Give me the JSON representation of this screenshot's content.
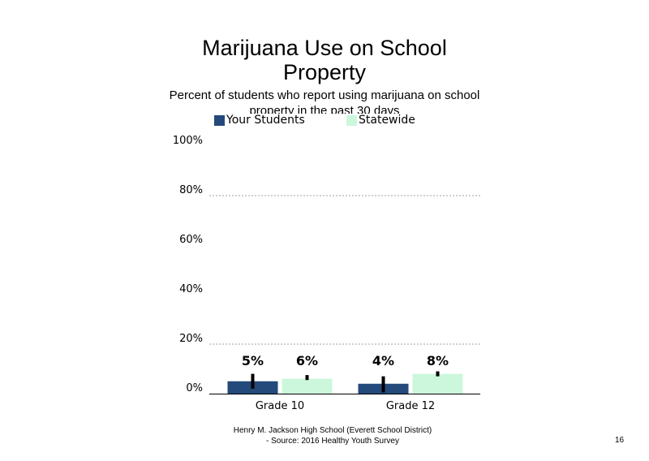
{
  "title": "Marijuana Use on School Property",
  "subtitle": "Percent of students who report using marijuana on school property in the past 30 days",
  "legend": [
    {
      "label": "Your Students",
      "color": "#234a7a"
    },
    {
      "label": "Statewide",
      "color": "#ccf7dc"
    }
  ],
  "footer": {
    "line1": "Henry M. Jackson High School (Everett School District)",
    "line2": "- Source: 2016 Healthy Youth Survey"
  },
  "page_number": "16",
  "chart_data": {
    "type": "bar",
    "categories": [
      "Grade 10",
      "Grade 12"
    ],
    "series": [
      {
        "name": "Your Students",
        "values": [
          5,
          4
        ],
        "labels": [
          "5%",
          "4%"
        ],
        "ci": [
          [
            2,
            8
          ],
          [
            0.5,
            7
          ]
        ],
        "color": "#234a7a"
      },
      {
        "name": "Statewide",
        "values": [
          6,
          8
        ],
        "labels": [
          "6%",
          "8%"
        ],
        "ci": [
          [
            5.5,
            7.5
          ],
          [
            7,
            9
          ]
        ],
        "color": "#ccf7dc"
      }
    ],
    "yticks": [
      "0%",
      "20%",
      "40%",
      "60%",
      "80%",
      "100%"
    ],
    "ylim": [
      0,
      100
    ],
    "gridlines": [
      20,
      80
    ],
    "legend_position": "top"
  }
}
